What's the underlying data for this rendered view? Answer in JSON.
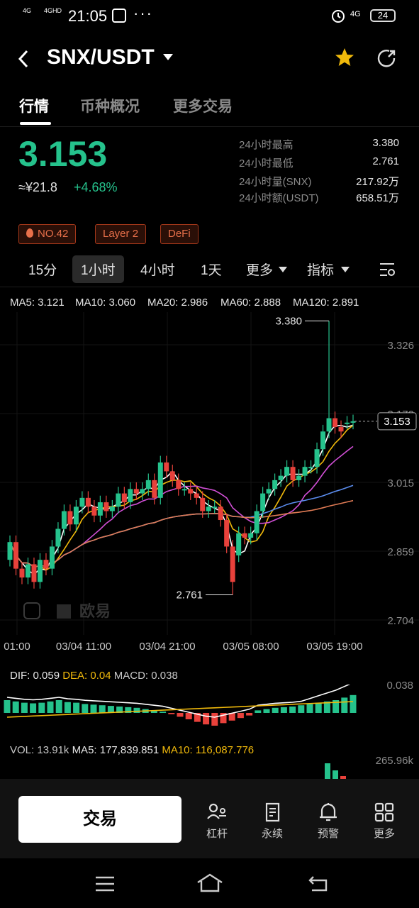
{
  "status_bar": {
    "signal_1": "4G",
    "signal_2": "4GHD",
    "time": "21:05",
    "network": "4G",
    "battery": "24"
  },
  "header": {
    "pair": "SNX/USDT"
  },
  "tabs": [
    "行情",
    "币种概况",
    "更多交易"
  ],
  "ticker": {
    "price": "3.153",
    "cny": "≈¥21.8",
    "change": "+4.68%",
    "stats": [
      {
        "label": "24小时最高",
        "value": "3.380"
      },
      {
        "label": "24小时最低",
        "value": "2.761"
      },
      {
        "label": "24小时量(SNX)",
        "value": "217.92万"
      },
      {
        "label": "24小时额(USDT)",
        "value": "658.51万"
      }
    ]
  },
  "tags": [
    "NO.42",
    "Layer 2",
    "DeFi"
  ],
  "intervals": [
    "15分",
    "1小时",
    "4小时",
    "1天",
    "更多",
    "指标"
  ],
  "ma": [
    {
      "text": "MA5: 3.121",
      "color": "#ffffff"
    },
    {
      "text": "MA10: 3.060",
      "color": "#f0b90b"
    },
    {
      "text": "MA20: 2.986",
      "color": "#d14fd6"
    },
    {
      "text": "MA60: 2.888",
      "color": "#5b8def"
    },
    {
      "text": "MA120: 2.891",
      "color": "#e07b55"
    }
  ],
  "chart_data": {
    "type": "candlestick",
    "y_ticks": [
      "3.326",
      "3.170",
      "3.015",
      "2.859",
      "2.704"
    ],
    "x_ticks": [
      "01:00",
      "03/04 11:00",
      "03/04 21:00",
      "03/05 08:00",
      "03/05 19:00"
    ],
    "last_price": "3.153",
    "high_label": "3.380",
    "low_label": "2.761",
    "watermark": "欧易"
  },
  "macd": {
    "dif": "DIF: 0.059",
    "dea": "DEA: 0.04",
    "macd": "MACD: 0.038",
    "axis": "0.038"
  },
  "volume": {
    "vol": "VOL: 13.91k",
    "ma5": "MA5: 177,839.851",
    "ma10": "MA10: 116,087.776",
    "axis": "265.96k"
  },
  "bottom": {
    "trade": "交易",
    "nav": [
      "杠杆",
      "永续",
      "预警",
      "更多"
    ]
  },
  "colors": {
    "up": "#25c28c",
    "down": "#e8413b",
    "accent": "#f0b90b"
  }
}
